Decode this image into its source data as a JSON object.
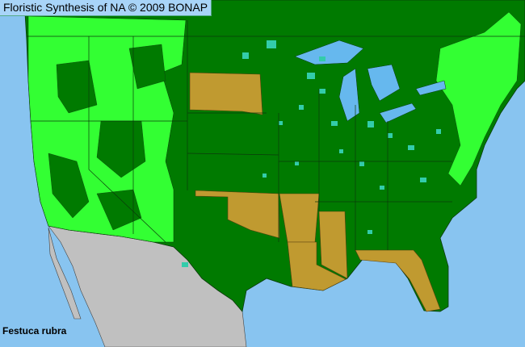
{
  "header": {
    "title": "Floristic Synthesis of NA © 2009 BONAP"
  },
  "map": {
    "species": "Festuca rubra",
    "colors": {
      "ocean": "#88c4f0",
      "present_in_state": "#007a00",
      "present_in_county": "#33ff33",
      "native_present_teal": "#33ccaa",
      "absent_rare_gold": "#c09a30",
      "outside_range": "#c0c0c0",
      "lakes": "#66b8ee",
      "borders": "#1a3a1a"
    }
  }
}
